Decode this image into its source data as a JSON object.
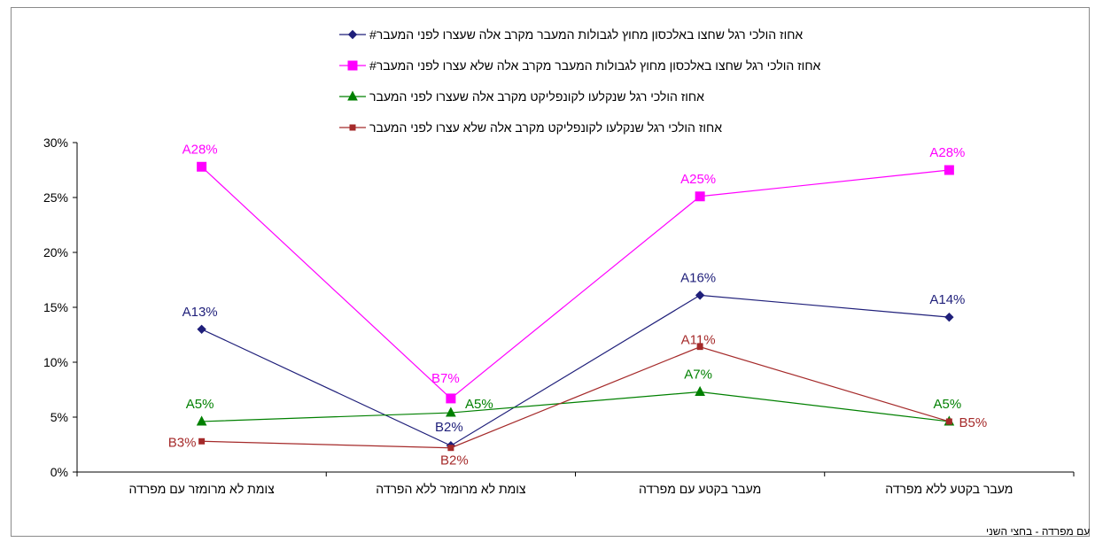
{
  "chart_data": {
    "type": "line",
    "title": "",
    "xlabel": "",
    "ylabel": "",
    "ylim": [
      0,
      0.3
    ],
    "yticks": [
      "0%",
      "5%",
      "10%",
      "15%",
      "20%",
      "25%",
      "30%"
    ],
    "grid": false,
    "legend_position": "top",
    "categories": [
      "צומת לא מרומזר עם מפרדה",
      "צומת לא מרומזר ללא הפרדה",
      "מעבר בקטע עם מפרדה",
      "מעבר בקטע ללא מפרדה"
    ],
    "series": [
      {
        "name": "אחוז הולכי רגל שחצו באלכסון מחוץ לגבולות המעבר מקרב אלה שעצרו לפני המעבר#",
        "color": "#1f1f7a",
        "marker": "diamond",
        "values": [
          0.13,
          0.024,
          0.161,
          0.141
        ],
        "labels": [
          "A13%",
          "B2%",
          "A16%",
          "A14%"
        ]
      },
      {
        "name": "אחוז הולכי רגל שחצו באלכסון מחוץ לגבולות המעבר מקרב אלה שלא עצרו לפני המעבר#",
        "color": "#ff00ff",
        "marker": "square",
        "values": [
          0.278,
          0.067,
          0.251,
          0.275
        ],
        "labels": [
          "A28%",
          "B7%",
          "A25%",
          "A28%"
        ]
      },
      {
        "name": "אחוז הולכי רגל שנקלעו לקונפליקט מקרב אלה שעצרו לפני המעבר",
        "color": "#008000",
        "marker": "triangle",
        "values": [
          0.046,
          0.054,
          0.073,
          0.046
        ],
        "labels": [
          "A5%",
          "A5%",
          "A7%",
          "A5%"
        ]
      },
      {
        "name": "אחוז הולכי רגל שנקלעו לקונפליקט מקרב אלה שלא עצרו לפני המעבר",
        "color": "#a52a2a",
        "marker": "small-square",
        "values": [
          0.028,
          0.022,
          0.114,
          0.046
        ],
        "labels": [
          "B3%",
          "B2%",
          "A11%",
          "B5%"
        ]
      }
    ],
    "footnote": "#במעבר עם מפרדה - בחצי השני"
  }
}
